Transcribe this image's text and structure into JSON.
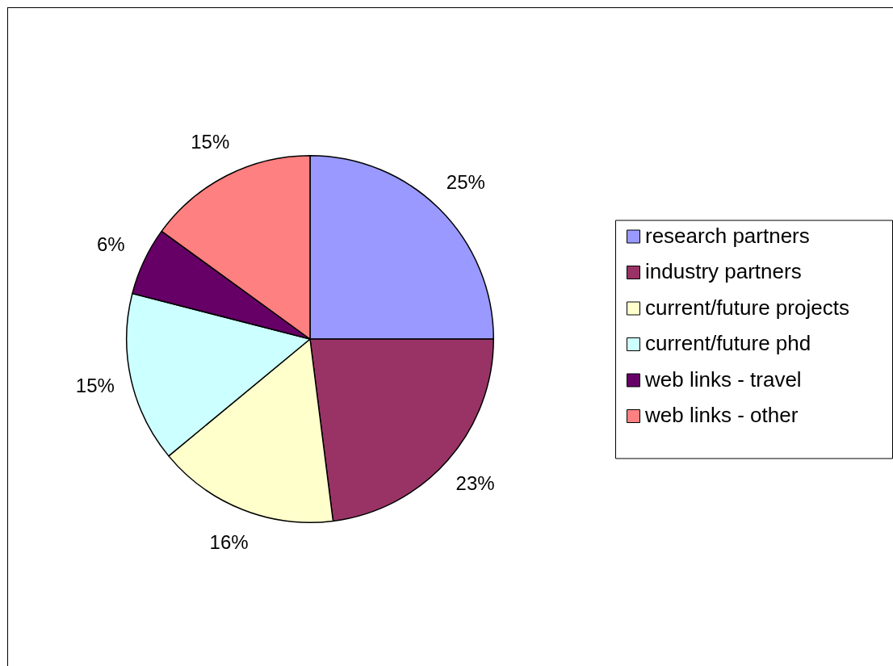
{
  "chart_data": {
    "type": "pie",
    "categories": [
      "research partners",
      "industry partners",
      "current/future projects",
      "current/future phd",
      "web links - travel",
      "web links - other"
    ],
    "values": [
      25,
      23,
      16,
      15,
      6,
      15
    ],
    "colors": [
      "#9999ff",
      "#993366",
      "#ffffcc",
      "#ccffff",
      "#660066",
      "#ff8080"
    ],
    "value_labels": [
      "25%",
      "23%",
      "16%",
      "15%",
      "6%",
      "15%"
    ],
    "legend": "right"
  }
}
